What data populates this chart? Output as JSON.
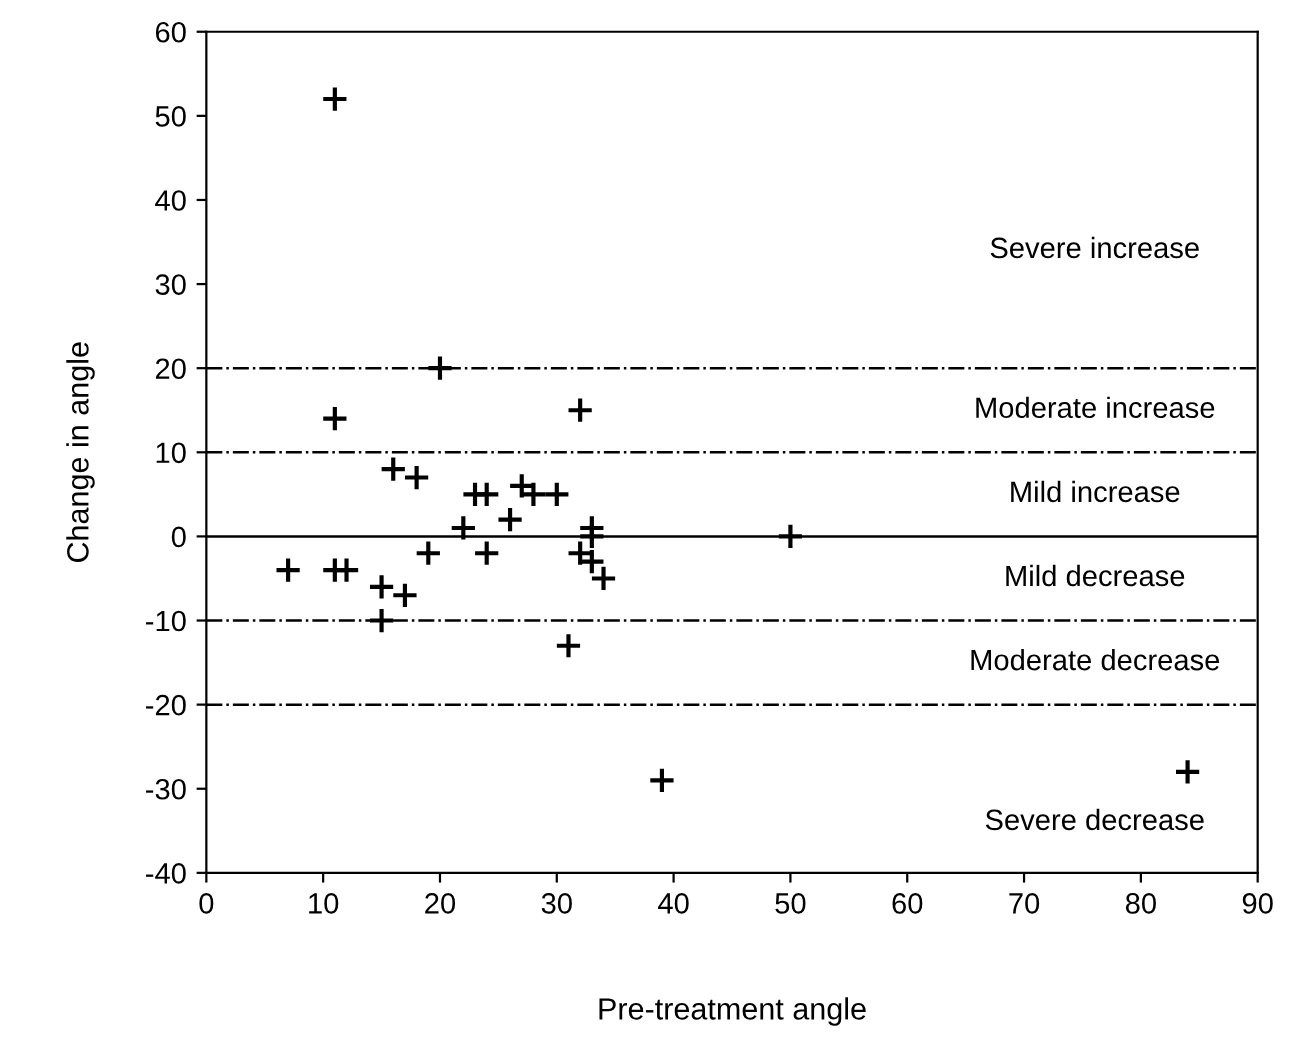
{
  "chart_data": {
    "type": "scatter",
    "xlabel": "Pre-treatment angle",
    "ylabel": "Change in angle",
    "x": [
      11,
      11,
      20,
      32,
      16,
      18,
      23,
      24,
      27,
      28,
      30,
      26,
      22,
      33,
      33,
      50,
      7,
      11,
      12,
      19,
      24,
      32,
      33,
      34,
      15,
      17,
      15,
      31,
      39,
      84
    ],
    "values": [
      52,
      14,
      20,
      15,
      8,
      7,
      5,
      5,
      6,
      5,
      5,
      2,
      1,
      1,
      0,
      0,
      -4,
      -4,
      -4,
      -2,
      -2,
      -2,
      -3,
      -5,
      -6,
      -7,
      -10,
      -13,
      -29,
      -28
    ],
    "color": "#000000",
    "marker": "cross",
    "grid": false,
    "xlim": [
      0,
      90
    ],
    "xticks": [
      0,
      10,
      20,
      30,
      40,
      50,
      60,
      70,
      80,
      90
    ],
    "ylim": [
      -40,
      60
    ],
    "yticks": [
      -40,
      -30,
      -20,
      -10,
      0,
      10,
      20,
      30,
      40,
      50,
      60
    ],
    "ref_lines": [
      {
        "axis": "y",
        "value": 20,
        "line_style": "dashdot"
      },
      {
        "axis": "y",
        "value": 10,
        "line_style": "dashdot"
      },
      {
        "axis": "y",
        "value": 0,
        "line_style": "solid"
      },
      {
        "axis": "y",
        "value": -10,
        "line_style": "dashdot"
      },
      {
        "axis": "y",
        "value": -20,
        "line_style": "dashdot"
      }
    ],
    "annotations": [
      "Severe increase",
      "Moderate increase",
      "Mild increase",
      "Mild decrease",
      "Moderate decrease",
      "Severe decrease"
    ]
  }
}
